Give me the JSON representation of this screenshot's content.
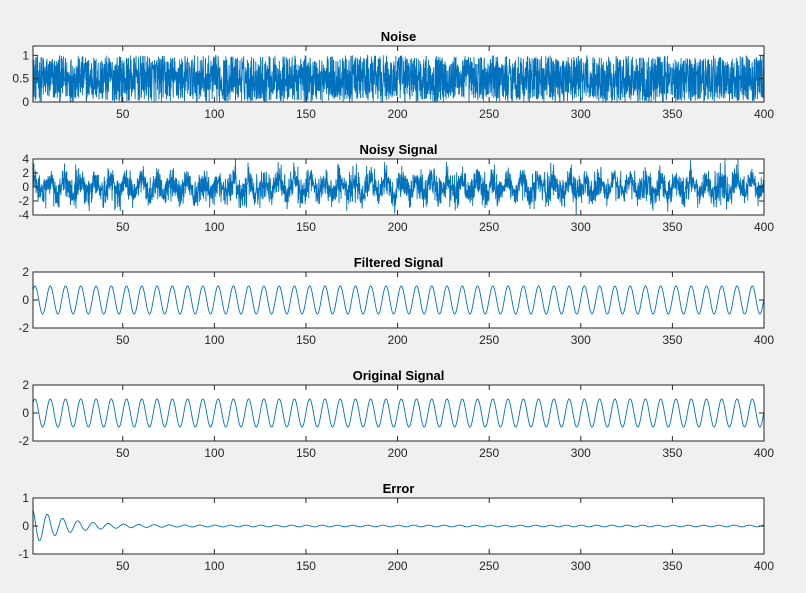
{
  "figure": {
    "background": "#f0f0f0",
    "axes_background": "#ffffff",
    "line_color": "#0072bd"
  },
  "chart_data": [
    {
      "type": "line",
      "title": "Noise",
      "x": {
        "range": [
          1,
          400
        ],
        "ticks": [
          50,
          100,
          150,
          200,
          250,
          300,
          350,
          400
        ]
      },
      "y": {
        "range": [
          0,
          1.2
        ],
        "ticks": [
          0,
          0.5,
          1
        ],
        "tick_labels": [
          "0",
          "0.5",
          "1"
        ]
      },
      "series": [
        {
          "generator": "uniform_random",
          "params": {
            "min": 0,
            "max": 1
          },
          "samples": 3200
        }
      ]
    },
    {
      "type": "line",
      "title": "Noisy Signal",
      "x": {
        "range": [
          1,
          400
        ],
        "ticks": [
          50,
          100,
          150,
          200,
          250,
          300,
          350,
          400
        ]
      },
      "y": {
        "range": [
          -4,
          4
        ],
        "ticks": [
          -4,
          -2,
          0,
          2,
          4
        ],
        "tick_labels": [
          "-4",
          "-2",
          "0",
          "2",
          "4"
        ]
      },
      "series": [
        {
          "generator": "sine_plus_noise",
          "params": {
            "amplitude": 1,
            "period": 8.33,
            "noise_sigma": 1.1,
            "noise_clip": 3.7
          },
          "samples": 3200
        }
      ]
    },
    {
      "type": "line",
      "title": "Filtered Signal",
      "x": {
        "range": [
          1,
          400
        ],
        "ticks": [
          50,
          100,
          150,
          200,
          250,
          300,
          350,
          400
        ]
      },
      "y": {
        "range": [
          -2,
          2
        ],
        "ticks": [
          -2,
          0,
          2
        ],
        "tick_labels": [
          "-2",
          "0",
          "2"
        ]
      },
      "series": [
        {
          "generator": "sine",
          "params": {
            "amplitude": 1,
            "period": 8.33
          },
          "samples": 3200
        }
      ]
    },
    {
      "type": "line",
      "title": "Original Signal",
      "x": {
        "range": [
          1,
          400
        ],
        "ticks": [
          50,
          100,
          150,
          200,
          250,
          300,
          350,
          400
        ]
      },
      "y": {
        "range": [
          -2,
          2
        ],
        "ticks": [
          -2,
          0,
          2
        ],
        "tick_labels": [
          "-2",
          "0",
          "2"
        ]
      },
      "series": [
        {
          "generator": "sine",
          "params": {
            "amplitude": 1,
            "period": 8.33
          },
          "samples": 3200
        }
      ]
    },
    {
      "type": "line",
      "title": "Error",
      "x": {
        "range": [
          1,
          400
        ],
        "ticks": [
          50,
          100,
          150,
          200,
          250,
          300,
          350,
          400
        ]
      },
      "y": {
        "range": [
          -1,
          1
        ],
        "ticks": [
          -1,
          0,
          1
        ],
        "tick_labels": [
          "-1",
          "0",
          "1"
        ]
      },
      "series": [
        {
          "generator": "decaying_oscillation",
          "params": {
            "initial_amplitude": 0.6,
            "decay_constant": 18,
            "floor_amplitude": 0.03,
            "period": 8.33
          },
          "samples": 3200
        }
      ]
    }
  ]
}
